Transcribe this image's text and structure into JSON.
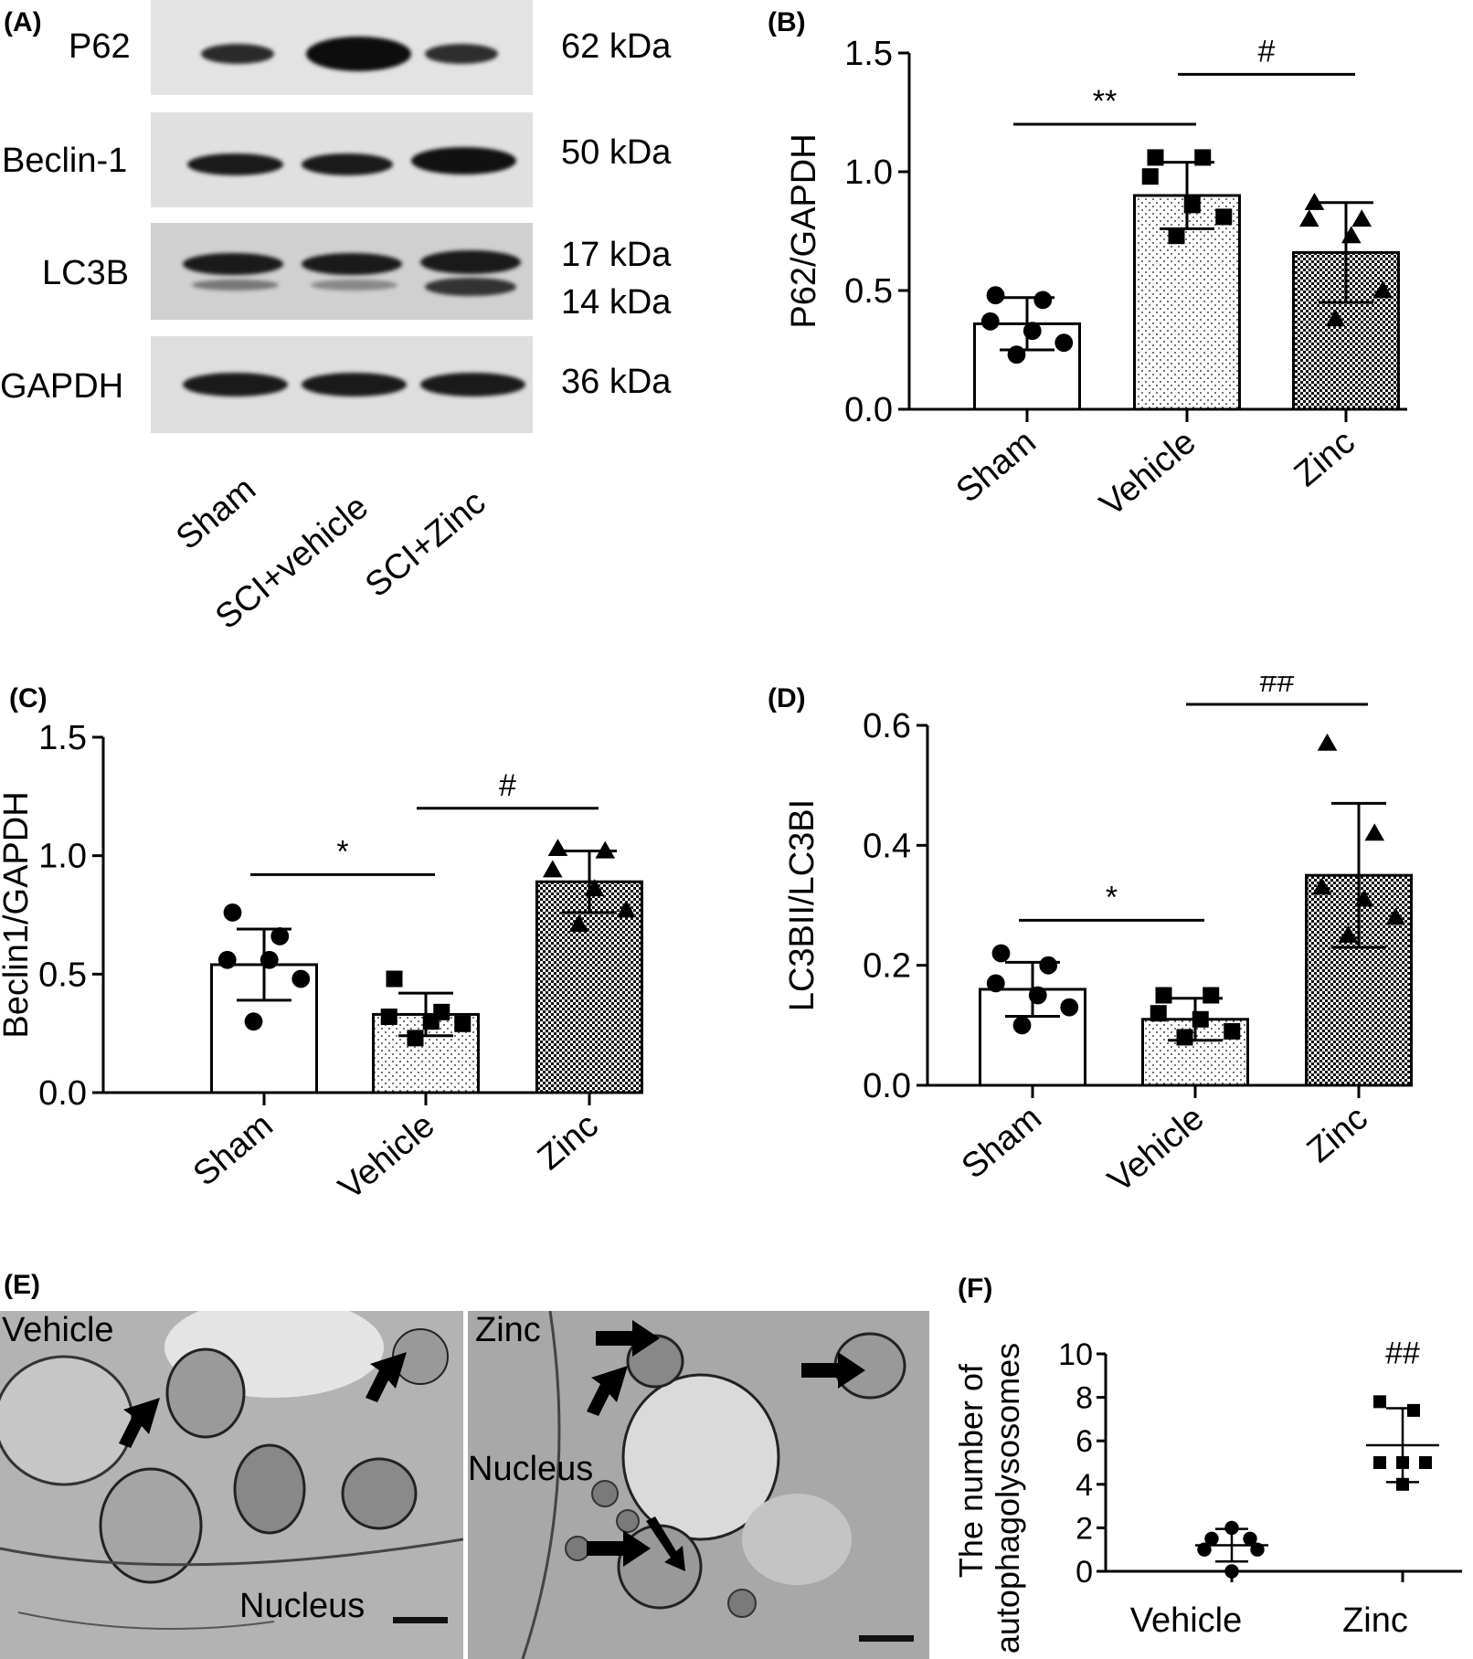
{
  "panel_A": {
    "label": "(A)",
    "blots": [
      {
        "name": "P62",
        "kda": "62 kDa"
      },
      {
        "name": "Beclin-1",
        "kda": "50 kDa"
      },
      {
        "name": "LC3B",
        "kda": "17 kDa",
        "kda2": "14 kDa"
      },
      {
        "name": "GAPDH",
        "kda": "36 kDa"
      }
    ],
    "lanes": [
      "Sham",
      "SCI+vehicle",
      "SCI+Zinc"
    ]
  },
  "panel_E": {
    "label": "(E)",
    "left_title": "Vehicle",
    "left_nucleus": "Nucleus",
    "right_title": "Zinc",
    "right_nucleus": "Nucleus"
  },
  "chart_data": [
    {
      "panel": "(B)",
      "type": "bar",
      "ylabel": "P62/GAPDH",
      "categories": [
        "Sham",
        "Vehicle",
        "Zinc"
      ],
      "ylim": [
        0,
        1.5
      ],
      "yticks": [
        "0.0",
        "0.5",
        "1.0",
        "1.5"
      ],
      "values": [
        0.36,
        0.9,
        0.66
      ],
      "errors": [
        0.11,
        0.14,
        0.21
      ],
      "points": [
        [
          0.48,
          0.46,
          0.37,
          0.33,
          0.28,
          0.23
        ],
        [
          1.06,
          1.06,
          0.98,
          0.86,
          0.81,
          0.73
        ],
        [
          0.87,
          0.8,
          0.8,
          0.73,
          0.5,
          0.38
        ]
      ],
      "markers": [
        "circle",
        "square",
        "triangle"
      ],
      "fills": [
        "#ffffff",
        "dots",
        "checker"
      ],
      "significance": [
        {
          "from": 0,
          "to": 1,
          "label": "**",
          "y": 1.2
        },
        {
          "from": 1,
          "to": 2,
          "label": "#",
          "y": 1.41
        }
      ]
    },
    {
      "panel": "(C)",
      "type": "bar",
      "ylabel": "Beclin1/GAPDH",
      "categories": [
        "Sham",
        "Vehicle",
        "Zinc"
      ],
      "ylim": [
        0,
        1.5
      ],
      "yticks": [
        "0.0",
        "0.5",
        "1.0",
        "1.5"
      ],
      "values": [
        0.54,
        0.33,
        0.89
      ],
      "errors": [
        0.15,
        0.09,
        0.13
      ],
      "points": [
        [
          0.76,
          0.66,
          0.56,
          0.56,
          0.48,
          0.3
        ],
        [
          0.48,
          0.34,
          0.32,
          0.3,
          0.29,
          0.23
        ],
        [
          1.03,
          1.02,
          0.94,
          0.86,
          0.77,
          0.71
        ]
      ],
      "markers": [
        "circle",
        "square",
        "triangle"
      ],
      "fills": [
        "#ffffff",
        "dots",
        "checker"
      ],
      "significance": [
        {
          "from": 0,
          "to": 1,
          "label": "*",
          "y": 0.92
        },
        {
          "from": 1,
          "to": 2,
          "label": "#",
          "y": 1.2
        }
      ]
    },
    {
      "panel": "(D)",
      "type": "bar",
      "ylabel": "LC3BII/LC3BI",
      "categories": [
        "Sham",
        "Vehicle",
        "Zinc"
      ],
      "ylim": [
        0,
        0.6
      ],
      "yticks": [
        "0.0",
        "0.2",
        "0.4",
        "0.6"
      ],
      "values": [
        0.16,
        0.11,
        0.35
      ],
      "errors": [
        0.045,
        0.035,
        0.12
      ],
      "points": [
        [
          0.22,
          0.2,
          0.17,
          0.15,
          0.13,
          0.1
        ],
        [
          0.15,
          0.15,
          0.12,
          0.11,
          0.09,
          0.08
        ],
        [
          0.57,
          0.42,
          0.33,
          0.31,
          0.28,
          0.25
        ]
      ],
      "markers": [
        "circle",
        "square",
        "triangle"
      ],
      "fills": [
        "#ffffff",
        "dots",
        "checker"
      ],
      "significance": [
        {
          "from": 0,
          "to": 1,
          "label": "*",
          "y": 0.275
        },
        {
          "from": 1,
          "to": 2,
          "label": "##",
          "y": 0.635
        }
      ]
    },
    {
      "panel": "(F)",
      "type": "scatter",
      "ylabel_line1": "The number of",
      "ylabel_line2": "autophagolysosomes",
      "categories": [
        "Vehicle",
        "Zinc"
      ],
      "ylim": [
        0,
        10
      ],
      "yticks": [
        "0",
        "2",
        "4",
        "6",
        "8",
        "10"
      ],
      "means": [
        1.2,
        5.8
      ],
      "errors": [
        0.75,
        1.7
      ],
      "points": [
        [
          2,
          1.5,
          1.5,
          1,
          1,
          0
        ],
        [
          7.8,
          7.4,
          5,
          5,
          5,
          4
        ]
      ],
      "markers": [
        "circle",
        "square"
      ],
      "significance": [
        {
          "over": 1,
          "label": "##",
          "y": 9.9
        }
      ]
    }
  ]
}
